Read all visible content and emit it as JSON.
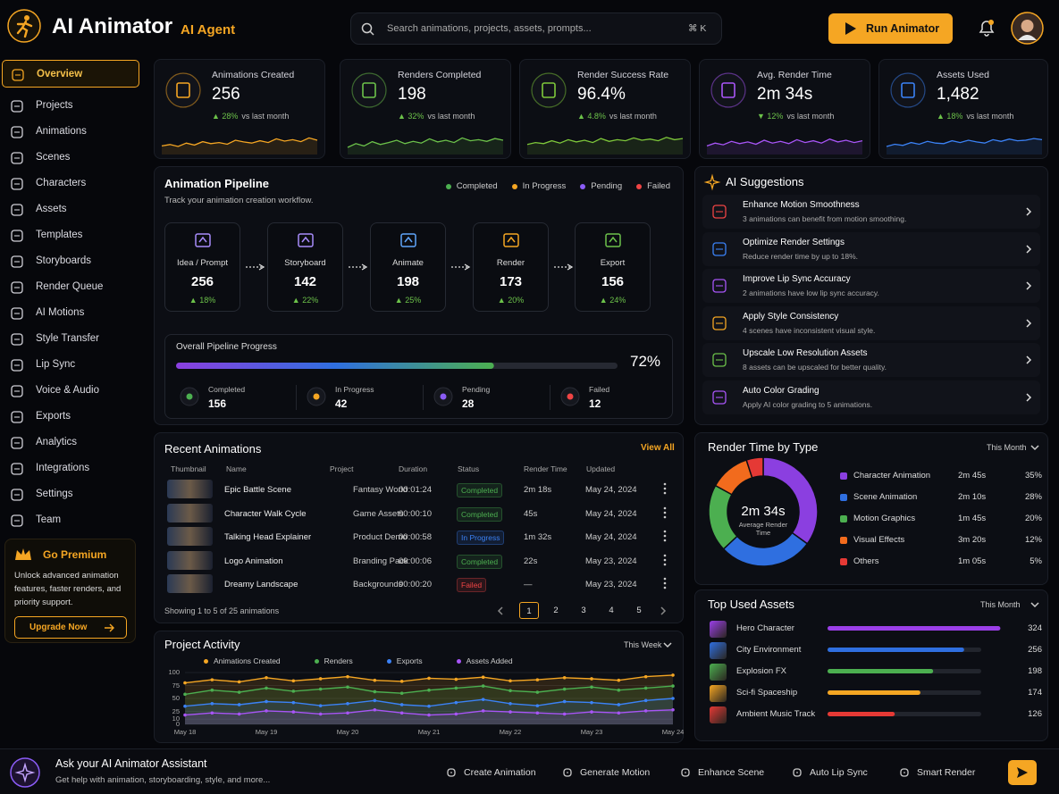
{
  "header": {
    "brand": "AI Animator",
    "badge": "AI Agent",
    "search": "Search animations, projects, assets, prompts...",
    "shortcut": "⌘ K",
    "run": "Run Animator"
  },
  "sidebar": {
    "items": [
      "Overview",
      "Projects",
      "Animations",
      "Scenes",
      "Characters",
      "Assets",
      "Templates",
      "Storyboards",
      "Render Queue",
      "AI Motions",
      "Style Transfer",
      "Lip Sync",
      "Voice & Audio",
      "Exports",
      "Analytics",
      "Integrations",
      "Settings",
      "Team"
    ],
    "premium": {
      "title": "Go Premium",
      "text": "Unlock advanced animation features, faster renders, and priority support.",
      "button": "Upgrade Now"
    }
  },
  "stats": [
    {
      "label": "Animations Created",
      "value": "256",
      "change": "▲ 28%",
      "note": "vs last month",
      "color": "#f5a623",
      "trend": [
        30,
        35,
        28,
        40,
        33,
        45,
        38,
        42,
        36,
        50,
        44,
        40,
        48,
        42,
        55,
        47,
        52,
        45,
        58,
        50
      ]
    },
    {
      "label": "Renders Completed",
      "value": "198",
      "change": "▲ 32%",
      "note": "vs last month",
      "color": "#6cc24a",
      "trend": [
        25,
        38,
        30,
        45,
        35,
        42,
        50,
        38,
        46,
        40,
        55,
        44,
        50,
        42,
        58,
        48,
        52,
        46,
        56,
        50
      ]
    },
    {
      "label": "Render Success Rate",
      "value": "96.4%",
      "change": "▲ 4.8%",
      "note": "vs last month",
      "color": "#7ec83a",
      "trend": [
        35,
        42,
        38,
        48,
        40,
        52,
        44,
        50,
        42,
        56,
        46,
        52,
        48,
        58,
        50,
        54,
        48,
        60,
        52,
        56
      ]
    },
    {
      "label": "Avg. Render Time",
      "value": "2m 34s",
      "change": "▼ 12%",
      "note": "vs last month",
      "color": "#a855f7",
      "trend": [
        30,
        40,
        34,
        46,
        38,
        44,
        36,
        50,
        40,
        46,
        38,
        52,
        42,
        48,
        40,
        54,
        44,
        50,
        42,
        48
      ]
    },
    {
      "label": "Assets Used",
      "value": "1,482",
      "change": "▲ 18%",
      "note": "vs last month",
      "color": "#3b82f6",
      "trend": [
        28,
        36,
        32,
        42,
        36,
        46,
        40,
        38,
        48,
        42,
        50,
        44,
        40,
        52,
        46,
        54,
        48,
        50,
        56,
        52
      ]
    }
  ],
  "pipeline": {
    "title": "Animation Pipeline",
    "subtitle": "Track your animation creation workflow.",
    "legend": [
      {
        "name": "Completed",
        "color": "#4caf50"
      },
      {
        "name": "In Progress",
        "color": "#f5a623"
      },
      {
        "name": "Pending",
        "color": "#8b5cf6"
      },
      {
        "name": "Failed",
        "color": "#ef4444"
      }
    ],
    "stages": [
      {
        "label": "Idea / Prompt",
        "value": "256",
        "change": "▲ 18%",
        "color": "#a78bfa"
      },
      {
        "label": "Storyboard",
        "value": "142",
        "change": "▲ 22%",
        "color": "#a78bfa"
      },
      {
        "label": "Animate",
        "value": "198",
        "change": "▲ 25%",
        "color": "#60a5fa"
      },
      {
        "label": "Render",
        "value": "173",
        "change": "▲ 20%",
        "color": "#f5a623"
      },
      {
        "label": "Export",
        "value": "156",
        "change": "▲ 24%",
        "color": "#6cc24a"
      }
    ],
    "progress": {
      "title": "Overall Pipeline Progress",
      "value": 72,
      "value_label": "72%",
      "stats": [
        {
          "label": "Completed",
          "value": 156,
          "color": "#4caf50"
        },
        {
          "label": "In Progress",
          "value": 42,
          "color": "#f5a623"
        },
        {
          "label": "Pending",
          "value": 28,
          "color": "#8b5cf6"
        },
        {
          "label": "Failed",
          "value": 12,
          "color": "#ef4444"
        }
      ]
    }
  },
  "suggestions": {
    "title": "AI Suggestions",
    "items": [
      {
        "title": "Enhance Motion Smoothness",
        "text": "3 animations can benefit from motion smoothing.",
        "color": "#ef4444"
      },
      {
        "title": "Optimize Render Settings",
        "text": "Reduce render time by up to 18%.",
        "color": "#3b82f6"
      },
      {
        "title": "Improve Lip Sync Accuracy",
        "text": "2 animations have low lip sync accuracy.",
        "color": "#a855f7"
      },
      {
        "title": "Apply Style Consistency",
        "text": "4 scenes have inconsistent visual style.",
        "color": "#f5a623"
      },
      {
        "title": "Upscale Low Resolution Assets",
        "text": "8 assets can be upscaled for better quality.",
        "color": "#6cc24a"
      },
      {
        "title": "Auto Color Grading",
        "text": "Apply AI color grading to 5 animations.",
        "color": "#a855f7"
      }
    ]
  },
  "recent": {
    "title": "Recent Animations",
    "view_all": "View All",
    "columns": [
      "Thumbnail",
      "Name",
      "Project",
      "Duration",
      "Status",
      "Render Time",
      "Updated"
    ],
    "rows": [
      {
        "name": "Epic Battle Scene",
        "project": "Fantasy World",
        "duration": "00:01:24",
        "status": "Completed",
        "status_color": "#4caf50",
        "render": "2m 18s",
        "updated": "May 24, 2024"
      },
      {
        "name": "Character Walk Cycle",
        "project": "Game Assets",
        "duration": "00:00:10",
        "status": "Completed",
        "status_color": "#4caf50",
        "render": "45s",
        "updated": "May 24, 2024"
      },
      {
        "name": "Talking Head Explainer",
        "project": "Product Demo",
        "duration": "00:00:58",
        "status": "In Progress",
        "status_color": "#3b82f6",
        "render": "1m 32s",
        "updated": "May 24, 2024"
      },
      {
        "name": "Logo Animation",
        "project": "Branding Pack",
        "duration": "00:00:06",
        "status": "Completed",
        "status_color": "#4caf50",
        "render": "22s",
        "updated": "May 23, 2024"
      },
      {
        "name": "Dreamy Landscape",
        "project": "Backgrounds",
        "duration": "00:00:20",
        "status": "Failed",
        "status_color": "#ef4444",
        "render": "—",
        "updated": "May 23, 2024"
      }
    ],
    "footer": "Showing 1 to 5 of 25 animations",
    "pages": [
      1,
      2,
      3,
      4,
      5
    ]
  },
  "render_time_chart": {
    "type": "pie",
    "title": "Render Time by Type",
    "period": "This Month",
    "center_value": "2m 34s",
    "center_label": "Average Render Time",
    "categories": [
      "Character Animation",
      "Scene Animation",
      "Motion Graphics",
      "Visual Effects",
      "Others"
    ],
    "times": [
      "2m 45s",
      "2m 10s",
      "1m 45s",
      "3m 20s",
      "1m 05s"
    ],
    "values": [
      35,
      28,
      20,
      12,
      5
    ],
    "value_labels": [
      "35%",
      "28%",
      "20%",
      "12%",
      "5%"
    ],
    "colors": [
      "#8b3fe0",
      "#2f6fe0",
      "#4caf50",
      "#f26b1d",
      "#e53935"
    ]
  },
  "assets_chart": {
    "type": "bar",
    "title": "Top Used Assets",
    "period": "This Month",
    "categories": [
      "Hero Character",
      "City Environment",
      "Explosion FX",
      "Sci-fi Spaceship",
      "Ambient Music Track"
    ],
    "values": [
      324,
      256,
      198,
      174,
      126
    ],
    "xlim": [
      0,
      330
    ],
    "colors": [
      "#9b3fe8",
      "#2f6fe0",
      "#4caf50",
      "#f5a623",
      "#e53935"
    ]
  },
  "activity_chart": {
    "type": "line",
    "title": "Project Activity",
    "period": "This Week",
    "categories": [
      "May 18",
      null,
      null,
      "May 19",
      null,
      null,
      "May 20",
      null,
      null,
      "May 21",
      null,
      null,
      "May 22",
      null,
      null,
      "May 23",
      null,
      null,
      "May 24"
    ],
    "ylim": [
      0,
      100
    ],
    "yticks": [
      0,
      10,
      25,
      50,
      75,
      100
    ],
    "series": [
      {
        "name": "Animations Created",
        "color": "#f5a623",
        "values": [
          80,
          86,
          82,
          90,
          84,
          88,
          92,
          85,
          83,
          89,
          87,
          91,
          84,
          86,
          90,
          88,
          85,
          92,
          95
        ]
      },
      {
        "name": "Renders",
        "color": "#4caf50",
        "values": [
          58,
          66,
          62,
          70,
          64,
          68,
          72,
          63,
          60,
          66,
          70,
          74,
          65,
          62,
          68,
          72,
          66,
          70,
          74
        ]
      },
      {
        "name": "Exports",
        "color": "#3b82f6",
        "values": [
          35,
          40,
          38,
          44,
          42,
          36,
          40,
          46,
          38,
          35,
          42,
          48,
          40,
          36,
          44,
          42,
          38,
          46,
          50
        ]
      },
      {
        "name": "Assets Added",
        "color": "#a855f7",
        "values": [
          18,
          22,
          20,
          26,
          24,
          20,
          22,
          28,
          22,
          18,
          20,
          26,
          24,
          22,
          20,
          24,
          22,
          26,
          28
        ]
      }
    ]
  },
  "assistant": {
    "title": "Ask your AI Animator Assistant",
    "text": "Get help with animation, storyboarding, style, and more...",
    "actions": [
      "Create Animation",
      "Generate Motion",
      "Enhance Scene",
      "Auto Lip Sync",
      "Smart Render"
    ]
  }
}
